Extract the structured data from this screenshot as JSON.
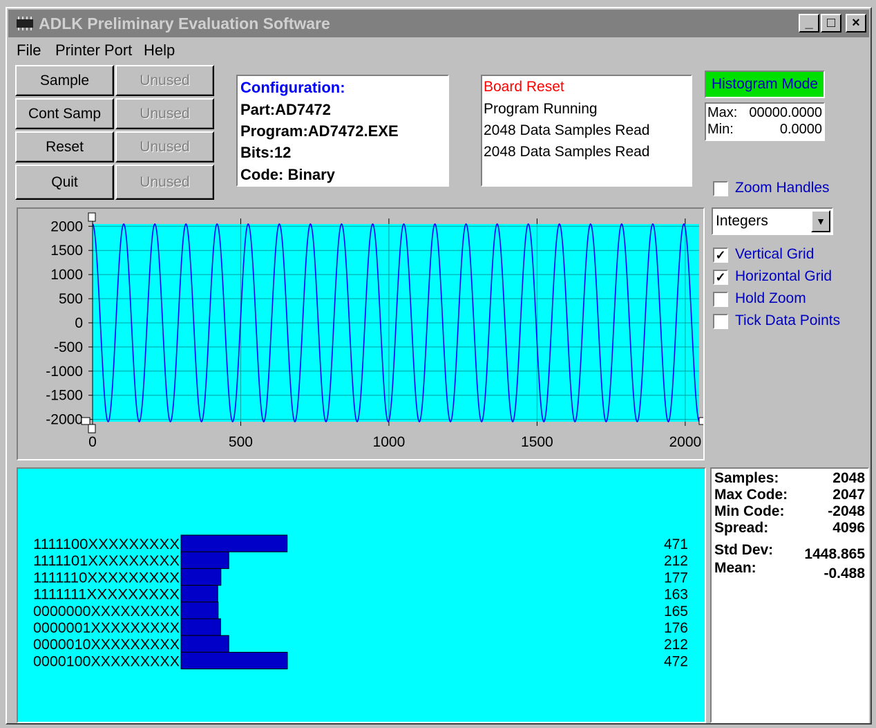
{
  "window": {
    "title": "ADLK Preliminary Evaluation Software",
    "minimize": "_",
    "maximize": "□",
    "close": "×"
  },
  "menu": {
    "file": "File",
    "printer_port": "Printer Port",
    "help": "Help"
  },
  "buttons": {
    "sample": "Sample",
    "cont_samp": "Cont Samp",
    "reset": "Reset",
    "quit": "Quit",
    "unused": "Unused"
  },
  "configuration": {
    "heading": "Configuration:",
    "part": "Part:AD7472",
    "program": "Program:AD7472.EXE",
    "bits": "Bits:12",
    "code": "Code: Binary"
  },
  "status": {
    "line1": "Board Reset",
    "line2": "Program Running",
    "line3": "2048 Data Samples Read",
    "line4": "2048 Data Samples Read"
  },
  "histogram_mode": "Histogram Mode",
  "maxmin": {
    "max_label": "Max:",
    "max_value": "00000.0000",
    "min_label": "Min:",
    "min_value": "0.0000"
  },
  "options": {
    "zoom_handles": "Zoom Handles",
    "format": "Integers",
    "vertical_grid": "Vertical Grid",
    "horizontal_grid": "Horizontal Grid",
    "hold_zoom": "Hold Zoom",
    "tick_data_points": "Tick Data Points",
    "zoom_handles_checked": false,
    "vertical_grid_checked": true,
    "horizontal_grid_checked": true,
    "hold_zoom_checked": false,
    "tick_data_points_checked": false
  },
  "colors": {
    "plot_bg": "#00ffff",
    "trace": "#0000ff",
    "bar": "#0000c8",
    "status_red": "#ff0000",
    "label_blue": "#0000c0",
    "mode_green": "#00e000"
  },
  "chart_data": [
    {
      "type": "line",
      "title": "",
      "xlabel": "",
      "ylabel": "",
      "xlim": [
        0,
        2047
      ],
      "ylim": [
        -2048,
        2047
      ],
      "x_ticks": [
        0,
        500,
        1000,
        1500,
        2000
      ],
      "y_ticks": [
        2000,
        1500,
        1000,
        500,
        0,
        -500,
        -1000,
        -1500,
        -2000
      ],
      "x_tick_labels": [
        "0",
        "500",
        "1000",
        "1500",
        "2000"
      ],
      "y_tick_labels": [
        "2000",
        "1500",
        "1000",
        "500",
        "0",
        "-500",
        "-1000",
        "-1500",
        "-2000"
      ],
      "series": [
        {
          "amplitude": 2047,
          "cycles": 19.5,
          "samples": 2048
        }
      ],
      "grid": {
        "vertical": true,
        "horizontal": true
      }
    },
    {
      "type": "bar",
      "orientation": "horizontal",
      "categories": [
        "1111100XXXXXXXXX",
        "1111101XXXXXXXXX",
        "1111110XXXXXXXXX",
        "1111111XXXXXXXXX",
        "0000000XXXXXXXXX",
        "0000001XXXXXXXXX",
        "0000010XXXXXXXXX",
        "0000100XXXXXXXXX"
      ],
      "values": [
        471,
        212,
        177,
        163,
        165,
        176,
        212,
        472
      ]
    }
  ],
  "stats": {
    "samples_label": "Samples:",
    "samples": "2048",
    "max_code_label": "Max Code:",
    "max_code": "2047",
    "min_code_label": "Min Code:",
    "min_code": "-2048",
    "spread_label": "Spread:",
    "spread": "4096",
    "std_dev_label": "Std Dev:",
    "std_dev": "1448.865",
    "mean_label": "Mean:",
    "mean": "-0.488"
  }
}
